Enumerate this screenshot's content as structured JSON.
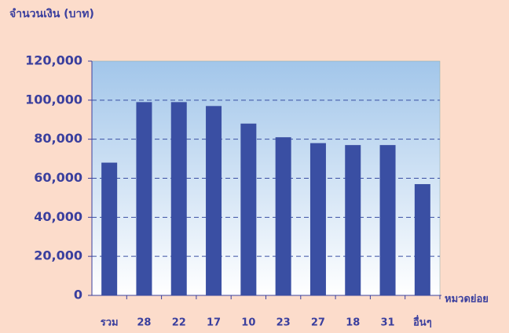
{
  "chart_data": {
    "type": "bar",
    "y_label": "จำนวนเงิน (บาท)",
    "x_label": "หมวดย่อย",
    "categories": [
      "รวม",
      "28",
      "22",
      "17",
      "10",
      "23",
      "27",
      "18",
      "31",
      "อื่นๆ"
    ],
    "values": [
      68000,
      99000,
      99000,
      97000,
      88000,
      81000,
      78000,
      77000,
      77000,
      57000
    ],
    "color": "#3a4fa3",
    "ylim": [
      0,
      120000
    ],
    "yticks": [
      0,
      {
        "value": 20000,
        "label": "20,000"
      },
      {
        "value": 40000,
        "label": "40,000"
      },
      {
        "value": 60000,
        "label": "60,000"
      },
      {
        "value": 80000,
        "label": "80,000"
      },
      {
        "value": 100000,
        "label": "100,000"
      },
      {
        "value": 120000,
        "label": "120,000"
      }
    ],
    "grid": true
  }
}
